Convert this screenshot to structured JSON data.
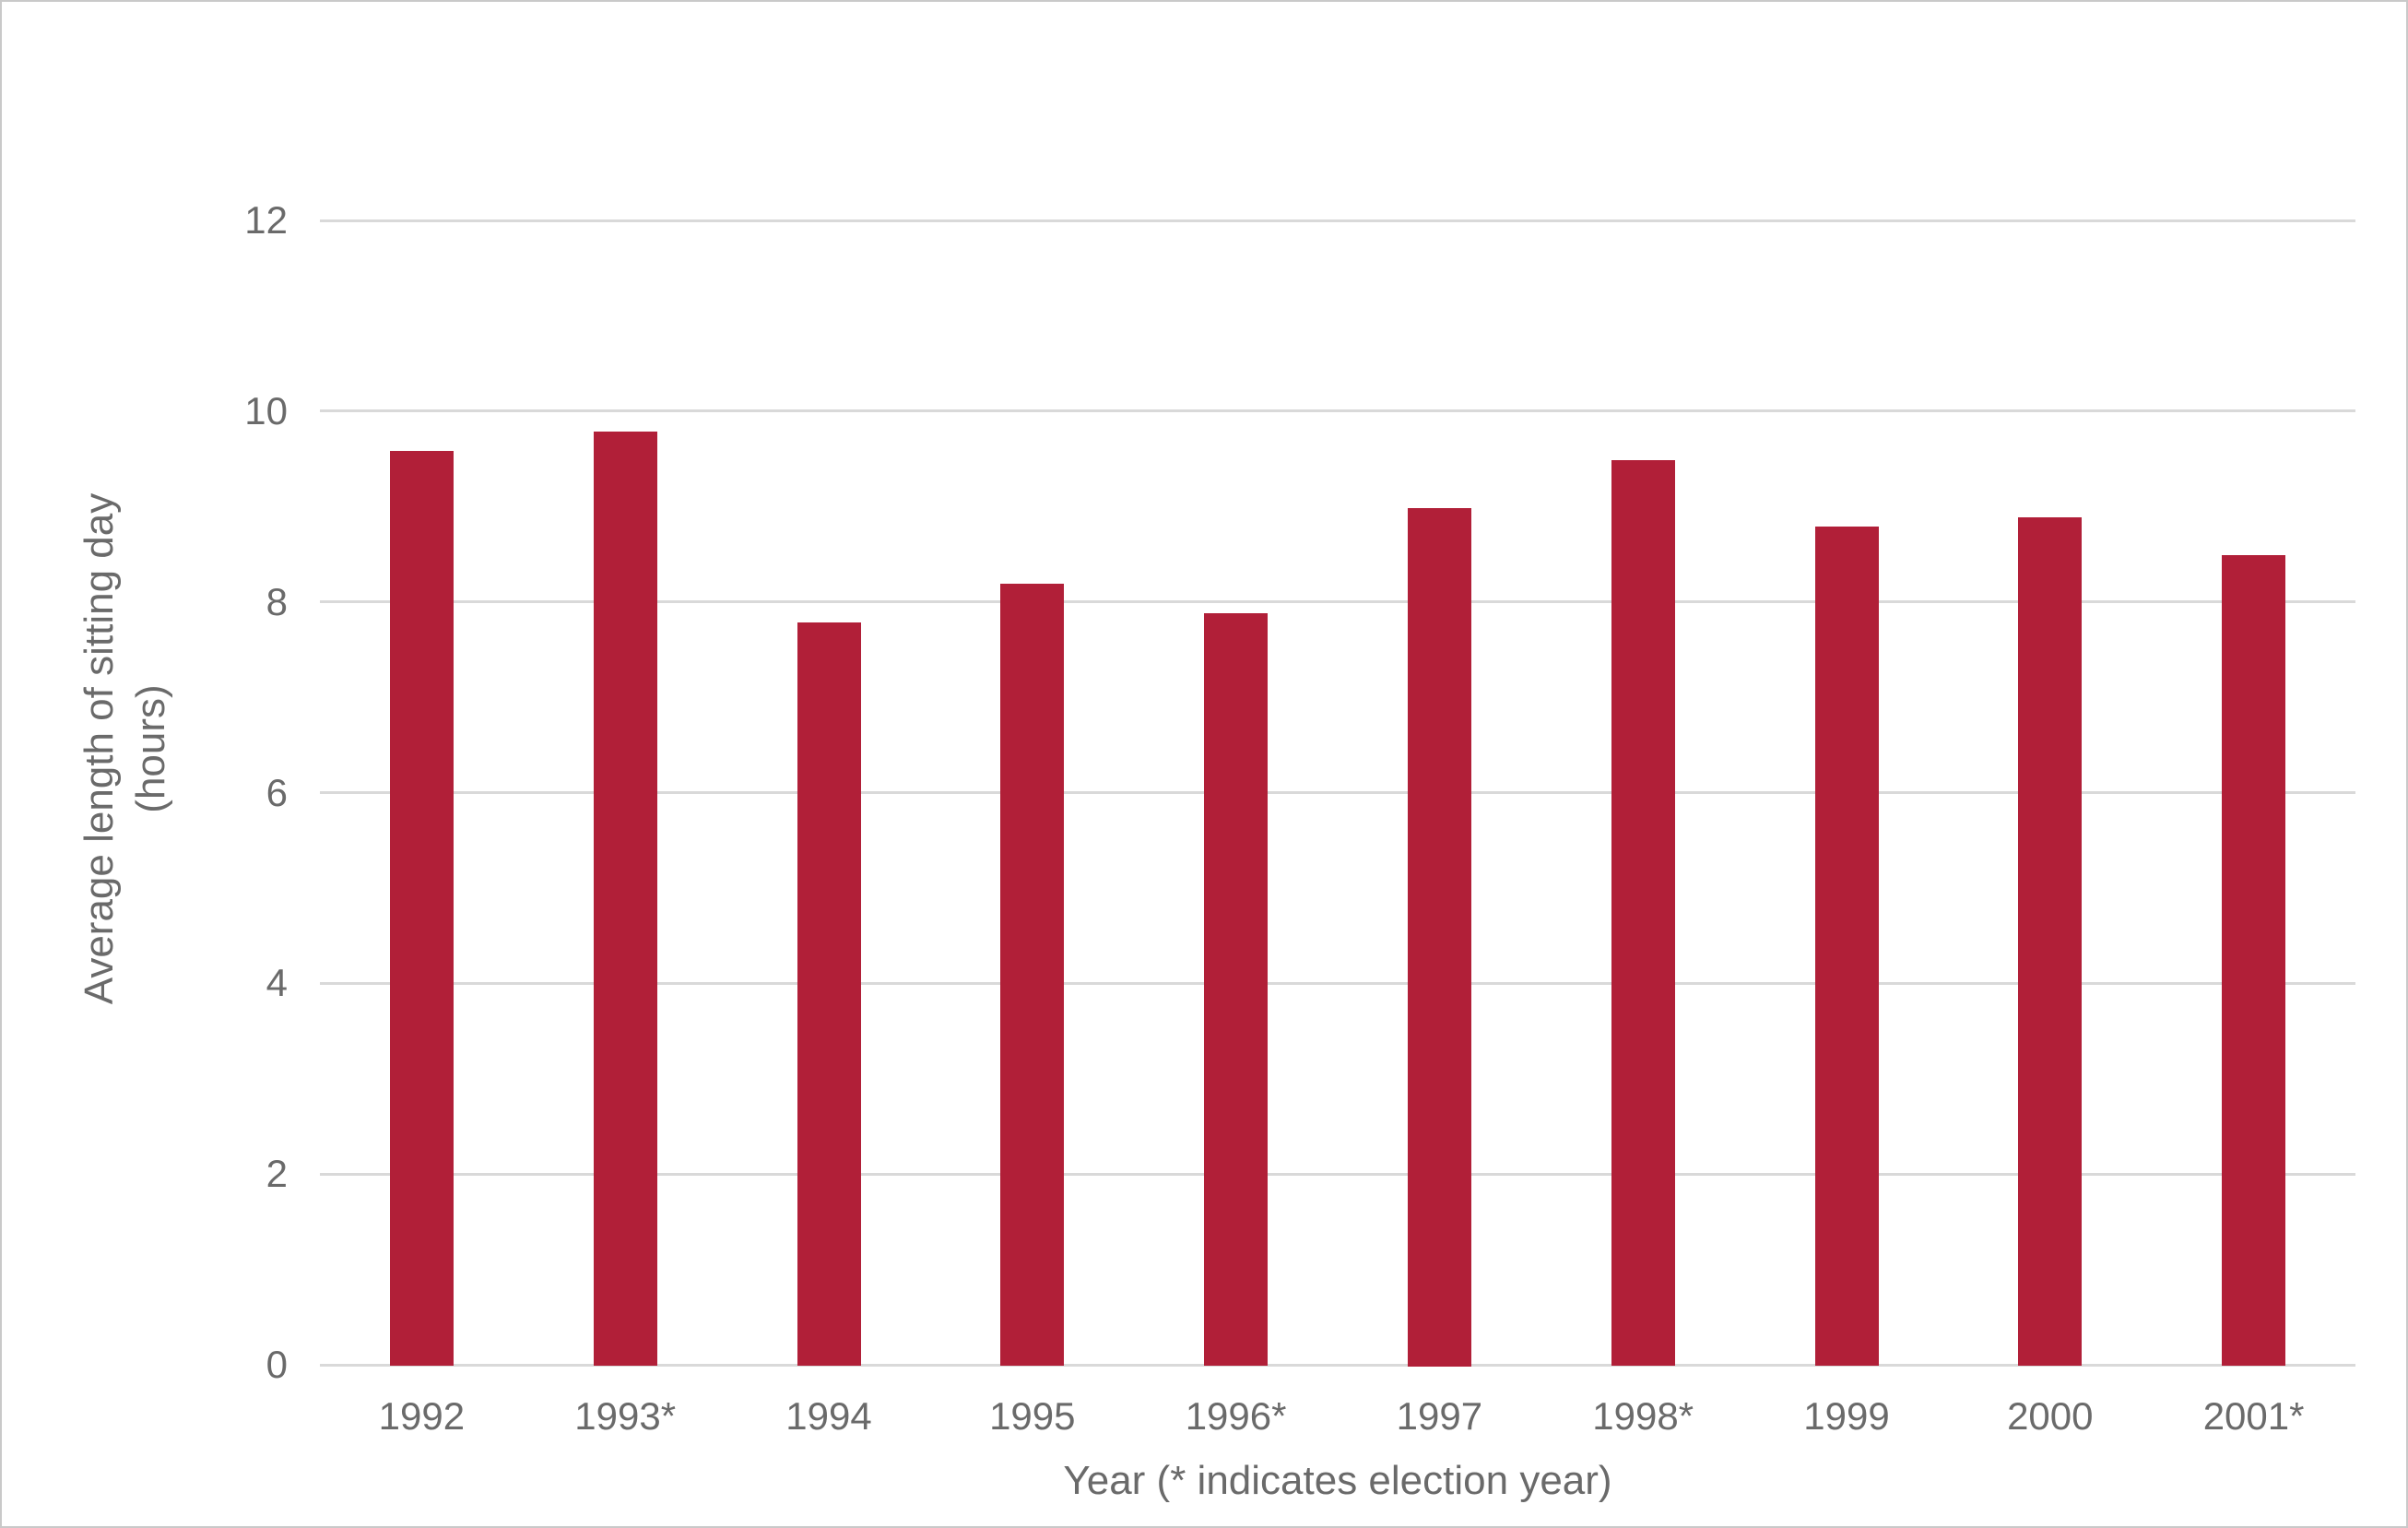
{
  "colors": {
    "bar": "#B11F38",
    "gridline": "#D9D9D9",
    "axis_text": "#6A6A6A",
    "border": "#C9C9C9",
    "background": "#FFFFFF"
  },
  "chart_data": {
    "type": "bar",
    "categories": [
      "1992",
      "1993*",
      "1994",
      "1995",
      "1996*",
      "1997",
      "1998*",
      "1999",
      "2000",
      "2001*"
    ],
    "values": [
      9.6,
      9.8,
      7.8,
      8.2,
      7.9,
      9.0,
      9.5,
      8.8,
      8.9,
      8.5
    ],
    "xlabel": "Year (* indicates election year)",
    "ylabel": "Average length of sitting day (hours)",
    "ylabel_lines": [
      "Average length of sitting day",
      "(hours)"
    ],
    "ylim": [
      0,
      12
    ],
    "yticks": [
      0,
      2,
      4,
      6,
      8,
      10,
      12
    ],
    "grid": "horizontal",
    "legend": "none",
    "bar_color": "#B11F38"
  }
}
